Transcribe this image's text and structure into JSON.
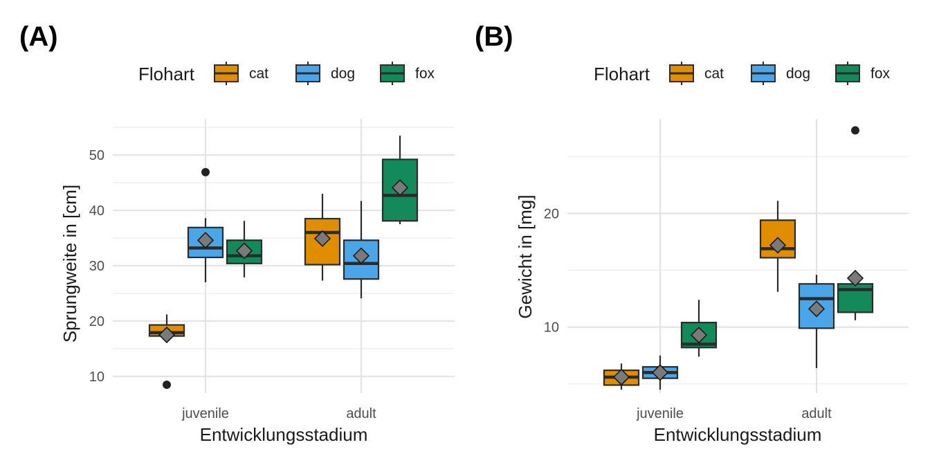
{
  "chart_data": [
    {
      "type": "boxplot",
      "panel_label": "(A)",
      "legend_title": "Flohart",
      "legend_position": "top",
      "xlabel": "Entwicklungsstadium",
      "ylabel": "Sprungweite in [cm]",
      "categories": [
        "juvenile",
        "adult"
      ],
      "yticks": [
        10,
        20,
        30,
        40,
        50
      ],
      "ylim": [
        7,
        56.5
      ],
      "grid": true,
      "colors": {
        "cat": "#e08e00",
        "dog": "#4aa6e8",
        "fox": "#138a5a"
      },
      "series": [
        {
          "name": "cat",
          "boxes": [
            {
              "q1": 17.3,
              "median": 17.9,
              "q3": 19.3,
              "whisker_low": 17.3,
              "whisker_high": 21.2,
              "mean": 17.5,
              "outliers": [
                8.5
              ]
            },
            {
              "q1": 30.2,
              "median": 36.0,
              "q3": 38.5,
              "whisker_low": 27.3,
              "whisker_high": 43.0,
              "mean": 34.9,
              "outliers": []
            }
          ]
        },
        {
          "name": "dog",
          "boxes": [
            {
              "q1": 31.5,
              "median": 33.2,
              "q3": 36.9,
              "whisker_low": 27.0,
              "whisker_high": 38.6,
              "mean": 34.6,
              "outliers": [
                46.9
              ]
            },
            {
              "q1": 27.6,
              "median": 30.4,
              "q3": 34.6,
              "whisker_low": 24.1,
              "whisker_high": 41.7,
              "mean": 31.8,
              "outliers": []
            }
          ]
        },
        {
          "name": "fox",
          "boxes": [
            {
              "q1": 30.4,
              "median": 31.8,
              "q3": 34.6,
              "whisker_low": 27.9,
              "whisker_high": 38.1,
              "mean": 32.7,
              "outliers": []
            },
            {
              "q1": 38.1,
              "median": 42.7,
              "q3": 49.2,
              "whisker_low": 37.5,
              "whisker_high": 53.5,
              "mean": 44.1,
              "outliers": []
            }
          ]
        }
      ]
    },
    {
      "type": "boxplot",
      "panel_label": "(B)",
      "legend_title": "Flohart",
      "legend_position": "top",
      "xlabel": "Entwicklungsstadium",
      "ylabel": "Gewicht in [mg]",
      "categories": [
        "juvenile",
        "adult"
      ],
      "yticks": [
        10,
        20
      ],
      "ylim": [
        4.2,
        28.3
      ],
      "grid": true,
      "colors": {
        "cat": "#e08e00",
        "dog": "#4aa6e8",
        "fox": "#138a5a"
      },
      "series": [
        {
          "name": "cat",
          "boxes": [
            {
              "q1": 4.9,
              "median": 5.6,
              "q3": 6.2,
              "whisker_low": 4.5,
              "whisker_high": 6.8,
              "mean": 5.6,
              "outliers": []
            },
            {
              "q1": 16.1,
              "median": 16.9,
              "q3": 19.4,
              "whisker_low": 13.1,
              "whisker_high": 21.1,
              "mean": 17.2,
              "outliers": []
            }
          ]
        },
        {
          "name": "dog",
          "boxes": [
            {
              "q1": 5.5,
              "median": 6.0,
              "q3": 6.5,
              "whisker_low": 4.5,
              "whisker_high": 7.5,
              "mean": 6.0,
              "outliers": []
            },
            {
              "q1": 9.9,
              "median": 12.5,
              "q3": 13.8,
              "whisker_low": 6.4,
              "whisker_high": 14.6,
              "mean": 11.6,
              "outliers": []
            }
          ]
        },
        {
          "name": "fox",
          "boxes": [
            {
              "q1": 8.2,
              "median": 8.5,
              "q3": 10.4,
              "whisker_low": 7.4,
              "whisker_high": 12.4,
              "mean": 9.3,
              "outliers": []
            },
            {
              "q1": 11.3,
              "median": 13.3,
              "q3": 13.8,
              "whisker_low": 10.6,
              "whisker_high": 13.8,
              "mean": 14.3,
              "outliers": [
                27.3
              ]
            }
          ]
        }
      ]
    }
  ]
}
